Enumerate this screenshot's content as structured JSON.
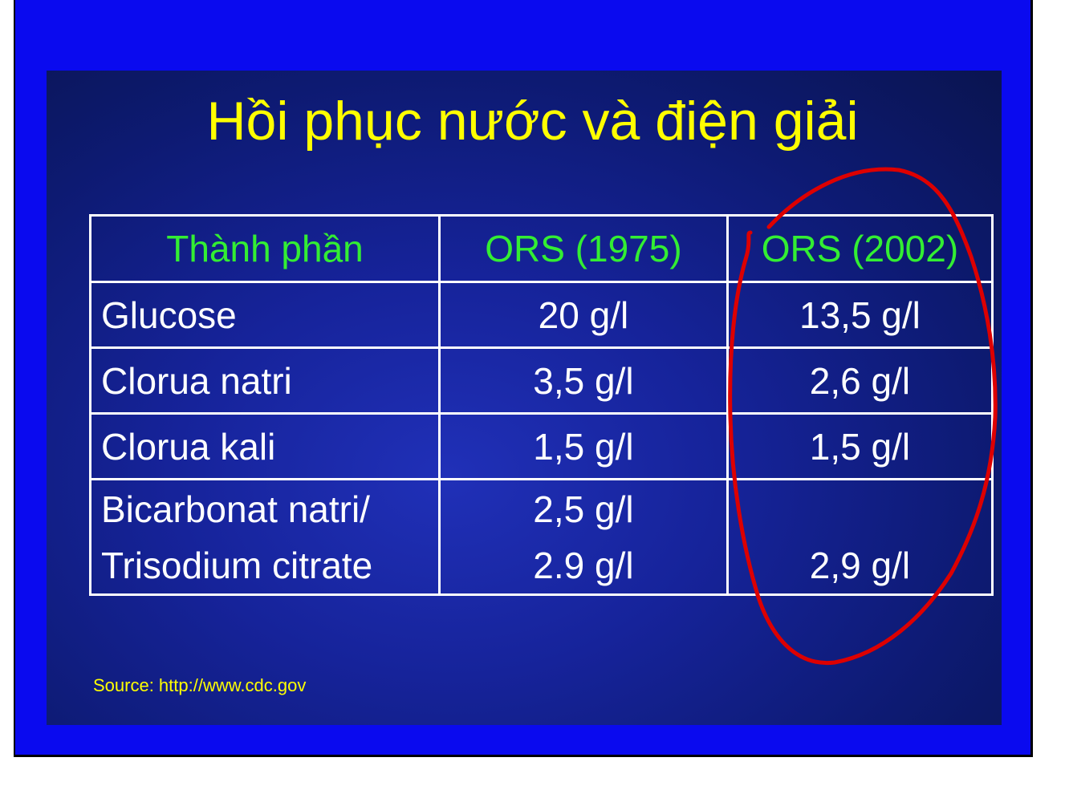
{
  "slide": {
    "title": "Hồi phục nước và điện giải",
    "source": "Source: http://www.cdc.gov"
  },
  "table": {
    "headers": [
      "Thành phần",
      "ORS (1975)",
      "ORS (2002)"
    ],
    "rows": [
      {
        "name": "Glucose",
        "ors1975": "20 g/l",
        "ors2002": "13,5 g/l"
      },
      {
        "name": "Clorua natri",
        "ors1975": "3,5 g/l",
        "ors2002": "2,6 g/l"
      },
      {
        "name": "Clorua kali",
        "ors1975": "1,5 g/l",
        "ors2002": "1,5 g/l"
      },
      {
        "name_line1": "Bicarbonat natri/",
        "name_line2": "Trisodium citrate",
        "ors1975_line1": "2,5 g/l",
        "ors1975_line2": "2.9 g/l",
        "ors2002": "2,9 g/l"
      }
    ]
  },
  "colors": {
    "frame": "#0a0aef",
    "title": "#ffff00",
    "header_text": "#33ee33",
    "cell_text": "#ffffff",
    "annotation": "#dd0000"
  }
}
